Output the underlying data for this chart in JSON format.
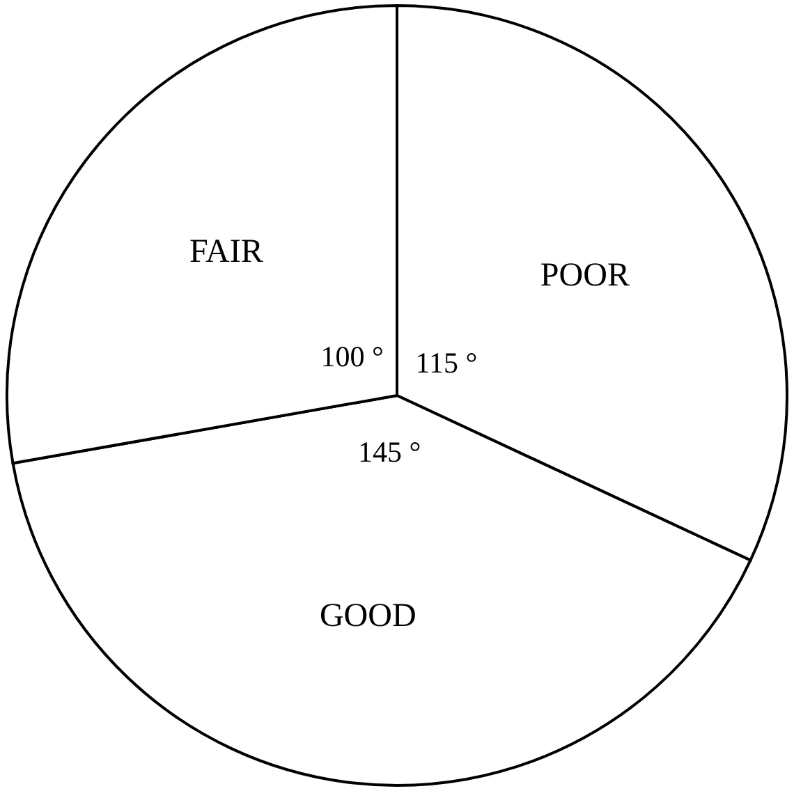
{
  "chart_data": {
    "type": "pie",
    "categories": [
      "POOR",
      "GOOD",
      "FAIR"
    ],
    "values": [
      115,
      145,
      100
    ],
    "colors": [
      "#ffffff",
      "#ffffff",
      "#ffffff"
    ],
    "value_labels": [
      "115 °",
      "145 °",
      "100 °"
    ]
  }
}
